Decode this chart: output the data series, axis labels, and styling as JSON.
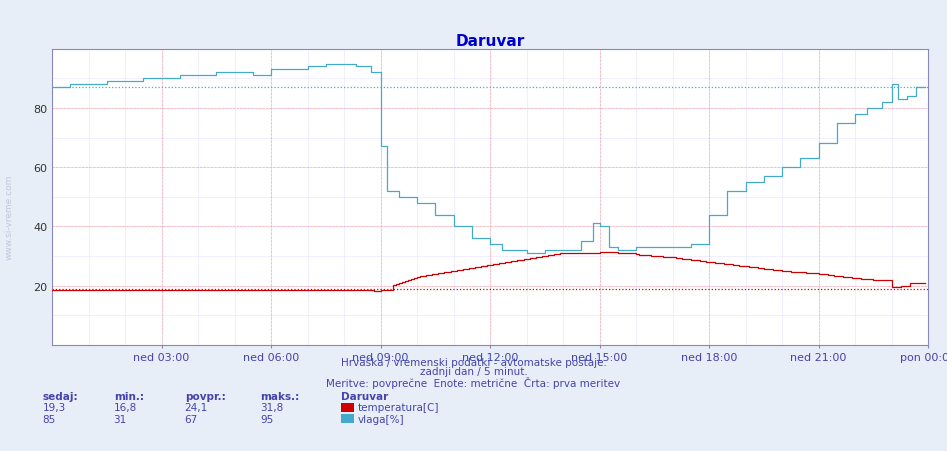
{
  "title": "Daruvar",
  "title_color": "#0000cc",
  "bg_color": "#e8eef8",
  "plot_bg_color": "#ffffff",
  "grid_color_major": "#ffaaaa",
  "grid_color_minor": "#ddddff",
  "xlabel_texts": [
    "ned 03:00",
    "ned 06:00",
    "ned 09:00",
    "ned 12:00",
    "ned 15:00",
    "ned 18:00",
    "ned 21:00",
    "pon 00:00"
  ],
  "ylabel_ticks": [
    20,
    40,
    60,
    80
  ],
  "ylim": [
    0,
    100
  ],
  "xlim": [
    0,
    288
  ],
  "footer_line1": "Hrvaška / vremenski podatki - avtomatske postaje.",
  "footer_line2": "zadnji dan / 5 minut.",
  "footer_line3": "Meritve: povprečne  Enote: metrične  Črta: prva meritev",
  "footer_color": "#4444aa",
  "side_text": "www.si-vreme.com",
  "temp_color": "#cc0000",
  "hum_color": "#44aacc",
  "legend_title": "Daruvar",
  "legend_items": [
    {
      "label": "temperatura[C]",
      "color": "#cc0000"
    },
    {
      "label": "vlaga[%]",
      "color": "#44aacc"
    }
  ],
  "stats": {
    "temp": {
      "sedaj": "19,3",
      "min": "16,8",
      "povpr": "24,1",
      "maks": "31,8"
    },
    "hum": {
      "sedaj": "85",
      "min": "31",
      "povpr": "67",
      "maks": "95"
    }
  },
  "temp_avg": 19.0,
  "hum_avg": 87.0,
  "n_points": 288
}
